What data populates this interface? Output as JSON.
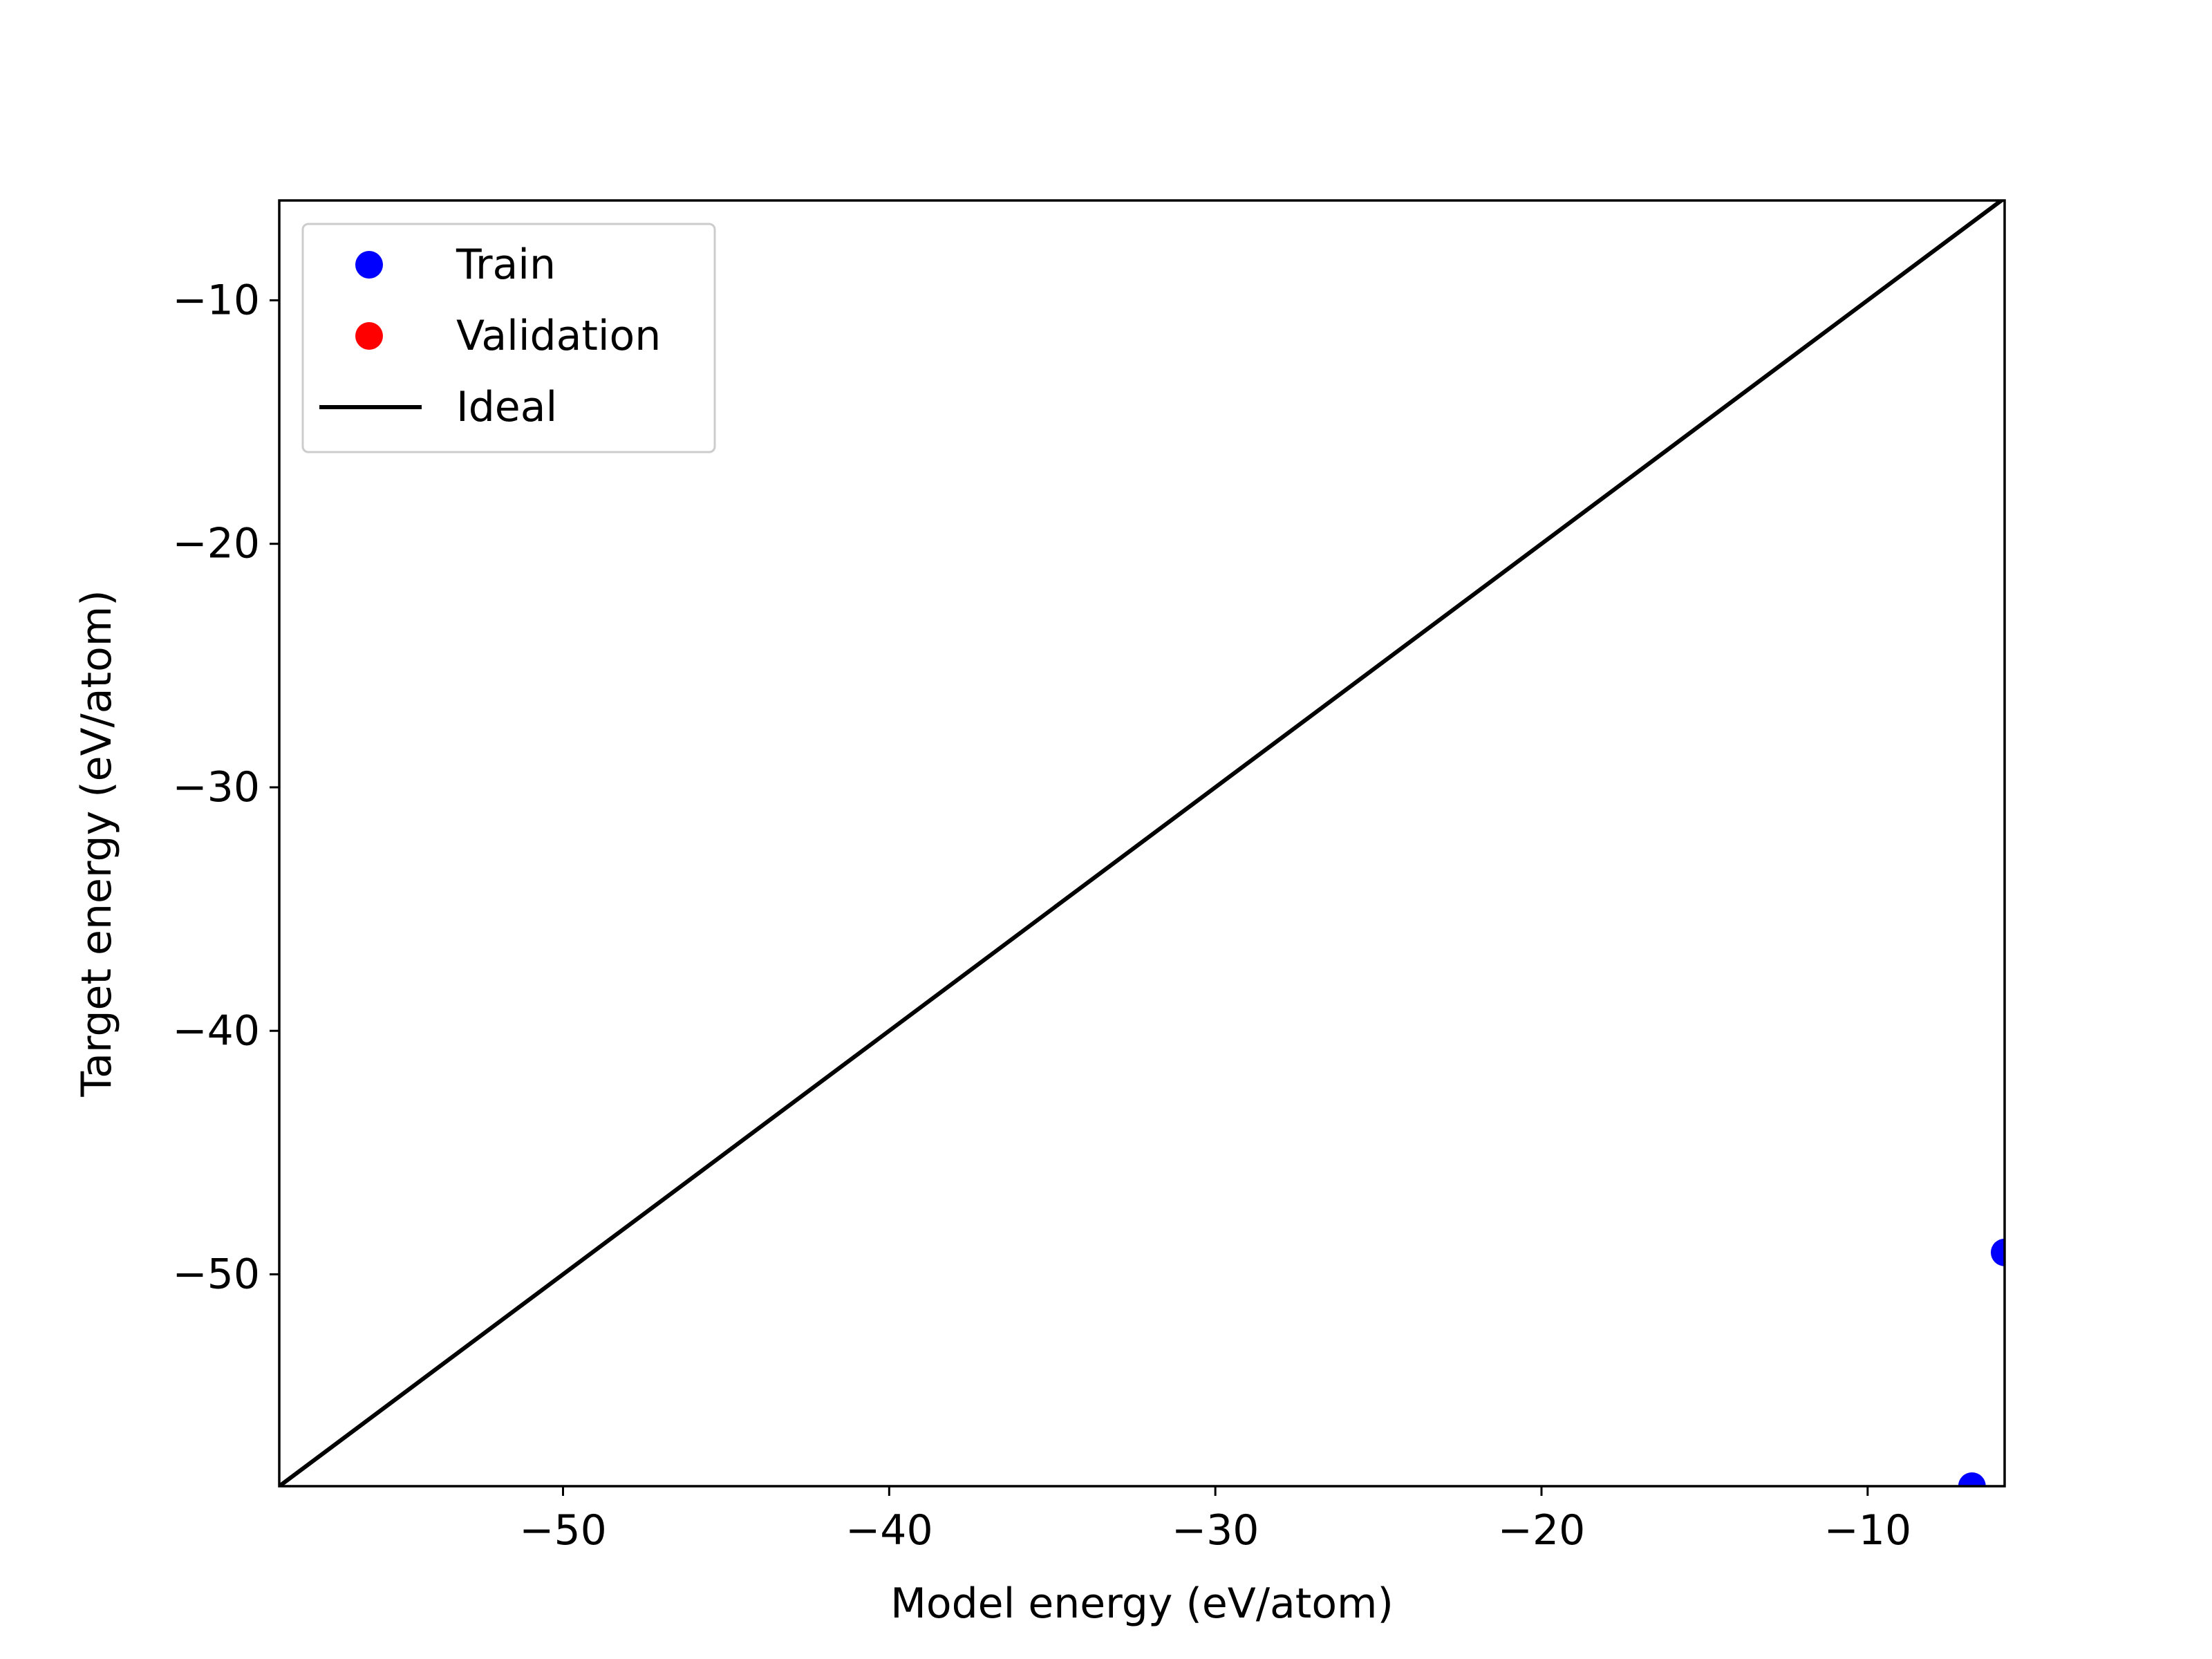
{
  "chart_data": {
    "type": "scatter",
    "xlabel": "Model energy (eV/atom)",
    "ylabel": "Target energy (eV/atom)",
    "xlim": [
      -58.7,
      -5.8
    ],
    "ylim": [
      -58.7,
      -5.9
    ],
    "xticks": [
      -50,
      -40,
      -30,
      -20,
      -10
    ],
    "yticks": [
      -10,
      -20,
      -30,
      -40,
      -50
    ],
    "xtick_labels": [
      "−50",
      "−40",
      "−30",
      "−20",
      "−10"
    ],
    "ytick_labels": [
      "−10",
      "−20",
      "−30",
      "−40",
      "−50"
    ],
    "grid": false,
    "legend_position": "top-left",
    "series": [
      {
        "name": "Train",
        "kind": "points",
        "color": "#0000ff",
        "points": [
          {
            "x": -5.8,
            "y": -49.1
          },
          {
            "x": -6.8,
            "y": -58.7
          }
        ]
      },
      {
        "name": "Validation",
        "kind": "points",
        "color": "#ff0000",
        "points": []
      },
      {
        "name": "Ideal",
        "kind": "line",
        "color": "#000000",
        "points": [
          {
            "x": -58.7,
            "y": -58.7
          },
          {
            "x": -5.8,
            "y": -5.8
          }
        ]
      }
    ]
  }
}
